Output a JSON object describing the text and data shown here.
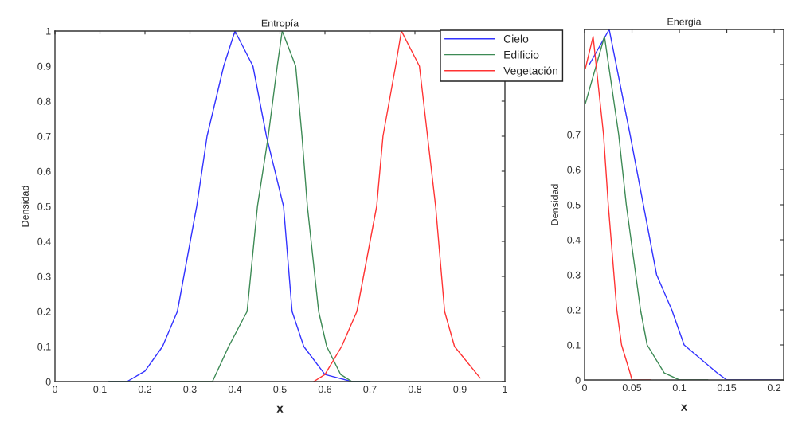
{
  "chart_data": [
    {
      "type": "line",
      "title": "Entropía",
      "xlabel": "x",
      "ylabel": "Densidad",
      "xlim": [
        0,
        1
      ],
      "ylim": [
        0,
        1
      ],
      "xticks": [
        0,
        0.1,
        0.2,
        0.3,
        0.4,
        0.5,
        0.6,
        0.7,
        0.8,
        0.9,
        1
      ],
      "yticks": [
        0,
        0.1,
        0.2,
        0.3,
        0.4,
        0.5,
        0.6,
        0.7,
        0.8,
        0.9,
        1
      ],
      "grid": false,
      "legend": "top right",
      "marker": "none",
      "line_style": "solid",
      "series": [
        {
          "name": "Cielo",
          "color": "#3333ff",
          "x": [
            0.12,
            0.16,
            0.2,
            0.239,
            0.272,
            0.315,
            0.338,
            0.375,
            0.4,
            0.44,
            0.47,
            0.508,
            0.527,
            0.553,
            0.6,
            0.66,
            0.7
          ],
          "values": [
            0,
            0,
            0.03,
            0.1,
            0.2,
            0.5,
            0.7,
            0.9,
            1,
            0.9,
            0.7,
            0.5,
            0.2,
            0.1,
            0.02,
            0,
            0
          ]
        },
        {
          "name": "Edificio",
          "color": "#3d8a55",
          "x": [
            0.12,
            0.35,
            0.386,
            0.427,
            0.45,
            0.474,
            0.494,
            0.505,
            0.535,
            0.549,
            0.561,
            0.586,
            0.604,
            0.635,
            0.66,
            0.7
          ],
          "values": [
            0,
            0,
            0.1,
            0.2,
            0.5,
            0.7,
            0.9,
            1,
            0.9,
            0.7,
            0.5,
            0.2,
            0.1,
            0.02,
            0,
            0
          ]
        },
        {
          "name": "Vegetación",
          "color": "#ff3333",
          "x": [
            0.575,
            0.6,
            0.637,
            0.671,
            0.715,
            0.729,
            0.757,
            0.77,
            0.81,
            0.828,
            0.846,
            0.866,
            0.888,
            0.945
          ],
          "values": [
            0,
            0.02,
            0.1,
            0.2,
            0.5,
            0.7,
            0.9,
            1,
            0.9,
            0.7,
            0.5,
            0.2,
            0.1,
            0.01
          ]
        }
      ]
    },
    {
      "type": "line",
      "title": "Energia",
      "xlabel": "x",
      "ylabel": "Densidad",
      "xlim": [
        0,
        0.21
      ],
      "ylim": [
        0,
        1
      ],
      "xticks": [
        0,
        0.05,
        0.1,
        0.15,
        0.2
      ],
      "yticks": [
        0,
        0.1,
        0.2,
        0.3,
        0.4,
        0.5,
        0.6,
        0.7,
        {
          "value": 0.8,
          "label": null
        },
        {
          "value": 0.9,
          "label": null
        },
        {
          "value": 1,
          "label": null
        }
      ],
      "grid": false,
      "marker": "none",
      "line_style": "solid",
      "series": [
        {
          "color": "#3333ff",
          "x": [
            0.005,
            0.026,
            0.048,
            0.062,
            0.076,
            0.092,
            0.105,
            0.14,
            0.15,
            0.206
          ],
          "values": [
            0.9,
            1,
            0.7,
            0.5,
            0.3,
            0.2,
            0.1,
            0.02,
            0,
            0
          ]
        },
        {
          "color": "#3d8a55",
          "x": [
            0.001,
            0.021,
            0.036,
            0.044,
            0.059,
            0.066,
            0.084,
            0.1,
            0.13
          ],
          "values": [
            0.79,
            0.98,
            0.7,
            0.5,
            0.2,
            0.1,
            0.02,
            0,
            0
          ]
        },
        {
          "color": "#ff3333",
          "x": [
            0.001,
            0.009,
            0.02,
            0.025,
            0.034,
            0.039,
            0.048,
            0.05,
            0.07
          ],
          "values": [
            0.89,
            0.98,
            0.7,
            0.5,
            0.2,
            0.1,
            0.02,
            0,
            0
          ]
        }
      ]
    }
  ]
}
